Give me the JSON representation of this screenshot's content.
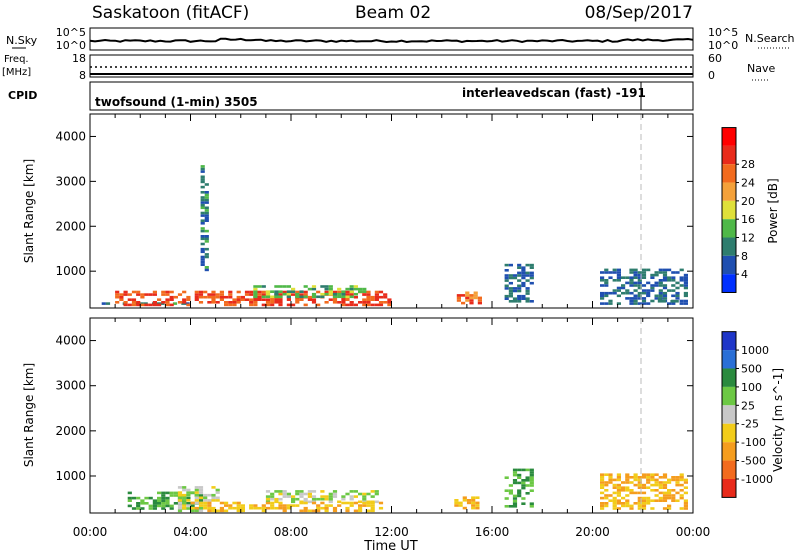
{
  "header": {
    "station": "Saskatoon (fitACF)",
    "beam": "Beam 02",
    "date": "08/Sep/2017"
  },
  "noise_panel": {
    "left_label": "N.Sky",
    "right_label": "N.Search",
    "left_ticks": [
      "10^5",
      "10^0"
    ],
    "right_ticks": [
      "10^5",
      "10^0"
    ]
  },
  "freq_panel": {
    "left_label_1": "Freq.",
    "left_label_2": "[MHz]",
    "right_label": "Nave",
    "left_ticks": [
      "18",
      "8"
    ],
    "right_ticks": [
      "60",
      "0"
    ]
  },
  "cpid_panel": {
    "label": "CPID",
    "program_1": "twofsound (1-min) 3505",
    "program_2": "interleavedscan (fast) -191"
  },
  "chart_data": [
    {
      "type": "heatmap",
      "title": "",
      "ylabel": "Slant Range [km]",
      "xlabel": "",
      "ylim": [
        180,
        4500
      ],
      "xlim": [
        0,
        24
      ],
      "y_ticks": [
        "1000",
        "2000",
        "3000",
        "4000"
      ],
      "colorbar": {
        "label": "Power [dB]",
        "ticks": [
          "4",
          "8",
          "12",
          "16",
          "20",
          "24",
          "28"
        ],
        "colors": [
          "#0030ff",
          "#1f4fb0",
          "#2e7d6e",
          "#4fb848",
          "#dfe03a",
          "#f4a13a",
          "#f26b1e",
          "#e82b1b",
          "#ff0000"
        ]
      },
      "series": [
        {
          "x": [
            0.3,
            4.0
          ],
          "y": [
            250,
            320
          ],
          "value": 8
        },
        {
          "x": [
            1.0,
            12.0
          ],
          "y": [
            220,
            600
          ],
          "value": 26
        },
        {
          "x": [
            4.4,
            4.8
          ],
          "y": [
            1000,
            3500
          ],
          "value": 8
        },
        {
          "x": [
            6.5,
            11.0
          ],
          "y": [
            400,
            700
          ],
          "value": 12
        },
        {
          "x": [
            14.6,
            15.6
          ],
          "y": [
            260,
            560
          ],
          "value": 24
        },
        {
          "x": [
            16.5,
            17.8
          ],
          "y": [
            300,
            1200
          ],
          "value": 6
        },
        {
          "x": [
            20.3,
            23.8
          ],
          "y": [
            250,
            1100
          ],
          "value": 6
        },
        {
          "x": [
            22.6,
            23.8
          ],
          "y": [
            300,
            460
          ],
          "value": 10
        }
      ]
    },
    {
      "type": "heatmap",
      "title": "",
      "ylabel": "Slant Range [km]",
      "xlabel": "Time UT",
      "ylim": [
        180,
        4500
      ],
      "xlim": [
        0,
        24
      ],
      "x_ticks": [
        "00:00",
        "04:00",
        "08:00",
        "12:00",
        "16:00",
        "20:00",
        "00:00"
      ],
      "y_ticks": [
        "1000",
        "2000",
        "3000",
        "4000"
      ],
      "colorbar": {
        "label": "Velocity [m s^-1]",
        "ticks": [
          "1000",
          "500",
          "100",
          "25",
          "-25",
          "-100",
          "-500",
          "-1000"
        ],
        "colors": [
          "#1f36c8",
          "#2a6fd6",
          "#2a8a3e",
          "#6cc844",
          "#c8c8c8",
          "#f2cc1a",
          "#f59d1e",
          "#f26b1e",
          "#e82b1b"
        ]
      },
      "series": [
        {
          "x": [
            1.5,
            4.5
          ],
          "y": [
            250,
            700
          ],
          "value": 100
        },
        {
          "x": [
            3.5,
            5.2
          ],
          "y": [
            200,
            800
          ],
          "value": 0
        },
        {
          "x": [
            7.0,
            11.5
          ],
          "y": [
            400,
            700
          ],
          "value": 0
        },
        {
          "x": [
            4.0,
            11.8
          ],
          "y": [
            200,
            450
          ],
          "value": -100
        },
        {
          "x": [
            14.5,
            15.6
          ],
          "y": [
            260,
            560
          ],
          "value": -100
        },
        {
          "x": [
            16.5,
            17.8
          ],
          "y": [
            300,
            1200
          ],
          "value": 100
        },
        {
          "x": [
            20.3,
            23.8
          ],
          "y": [
            250,
            1100
          ],
          "value": -100
        }
      ]
    }
  ]
}
